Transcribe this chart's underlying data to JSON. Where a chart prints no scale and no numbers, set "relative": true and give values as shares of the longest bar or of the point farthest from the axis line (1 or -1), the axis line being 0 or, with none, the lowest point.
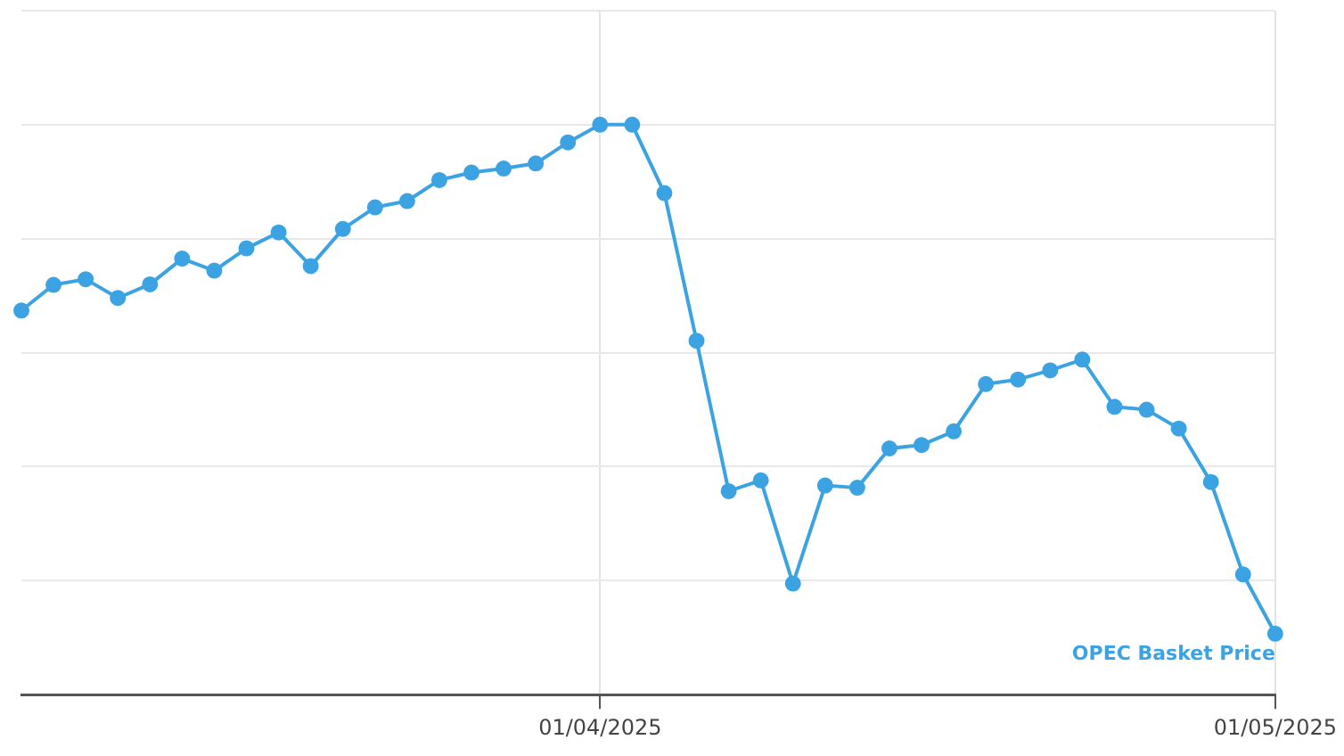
{
  "chart_data": {
    "type": "line",
    "relative": true,
    "grid": true,
    "legend": false,
    "marker": "circle",
    "line_style": "solid",
    "categories": [
      null,
      null,
      null,
      null,
      null,
      null,
      null,
      null,
      null,
      null,
      null,
      null,
      null,
      null,
      null,
      null,
      null,
      null,
      "01/04/2025",
      null,
      null,
      null,
      null,
      null,
      null,
      null,
      null,
      null,
      null,
      null,
      null,
      null,
      null,
      null,
      null,
      null,
      null,
      null,
      null,
      "01/05/2025"
    ],
    "series": [
      {
        "name": "OPEC Basket Price",
        "color": "#3ca3e3",
        "values": [
          0.674,
          0.719,
          0.729,
          0.696,
          0.72,
          0.765,
          0.744,
          0.783,
          0.811,
          0.752,
          0.817,
          0.855,
          0.866,
          0.903,
          0.916,
          0.923,
          0.932,
          0.969,
          1,
          1,
          0.88,
          0.621,
          0.357,
          0.376,
          0.195,
          0.367,
          0.363,
          0.432,
          0.438,
          0.462,
          0.545,
          0.553,
          0.569,
          0.588,
          0.505,
          0.5,
          0.467,
          0.373,
          0.211,
          0.107
        ]
      }
    ]
  }
}
